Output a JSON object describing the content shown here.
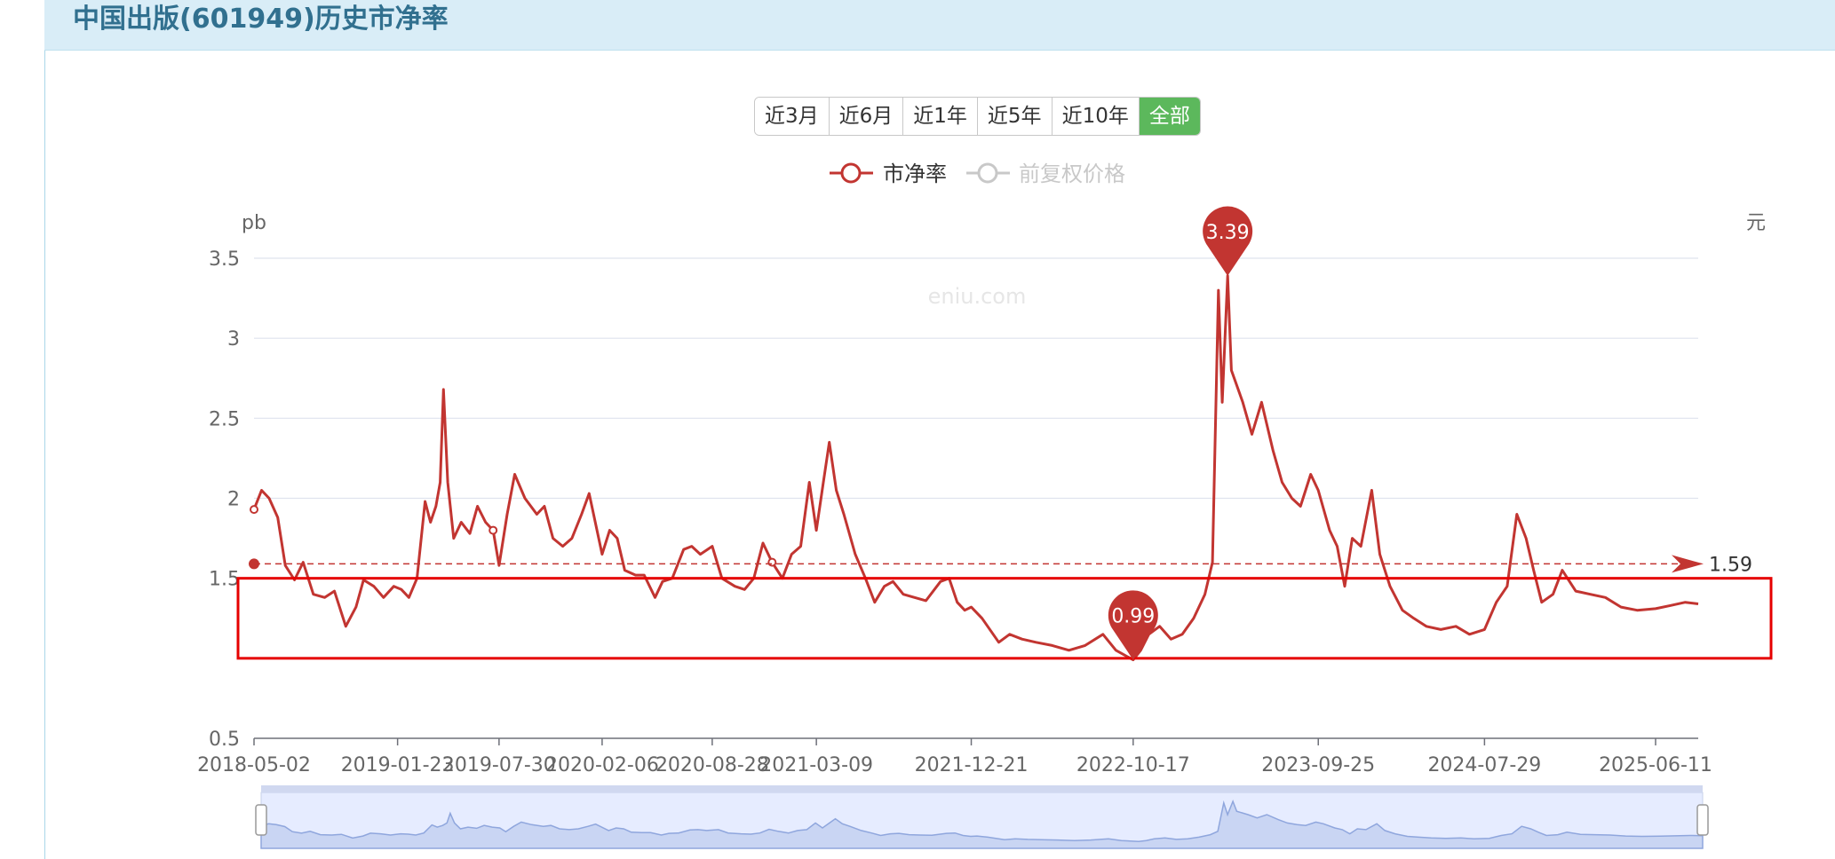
{
  "header": {
    "title": "中国出版(601949)历史市净率"
  },
  "range_buttons": [
    {
      "label": "近3月",
      "active": false
    },
    {
      "label": "近6月",
      "active": false
    },
    {
      "label": "近1年",
      "active": false
    },
    {
      "label": "近5年",
      "active": false
    },
    {
      "label": "近10年",
      "active": false
    },
    {
      "label": "全部",
      "active": true
    }
  ],
  "colors": {
    "accent_green": "#5cb85c",
    "series_red": "#c23531",
    "series_gray": "#c8c8c8",
    "header_bg": "#d9edf7",
    "title_blue": "#31708f",
    "highlight_box": "#e60000"
  },
  "chart_data": {
    "type": "line",
    "title": "",
    "watermark": "eniu.com",
    "left_axis_unit": "pb",
    "right_axis_unit": "元",
    "ylim": [
      0.5,
      3.5
    ],
    "yticks": [
      {
        "label": "3.5",
        "v": 3.5
      },
      {
        "label": "3",
        "v": 3.0
      },
      {
        "label": "2.5",
        "v": 2.5
      },
      {
        "label": "2",
        "v": 2.0
      },
      {
        "label": "1.5",
        "v": 1.5
      },
      {
        "label": "0.5",
        "v": 0.5
      }
    ],
    "xlim": [
      "2018-05-02",
      "2025-08-29"
    ],
    "xticks": [
      "2018-05-02",
      "2019-01-23",
      "2019-07-30",
      "2020-02-06",
      "2020-08-28",
      "2021-03-09",
      "2021-12-21",
      "2022-10-17",
      "2023-09-25",
      "2024-07-29",
      "2025-06-11"
    ],
    "legend": [
      {
        "name": "市净率",
        "active": true
      },
      {
        "name": "前复权价格",
        "active": false
      }
    ],
    "legend_position": "top-center",
    "grid": true,
    "series": [
      {
        "name": "市净率",
        "points": [
          [
            "2018-05-02",
            1.93
          ],
          [
            "2018-05-16",
            2.05
          ],
          [
            "2018-05-30",
            2.0
          ],
          [
            "2018-06-15",
            1.88
          ],
          [
            "2018-06-29",
            1.58
          ],
          [
            "2018-07-16",
            1.49
          ],
          [
            "2018-08-01",
            1.6
          ],
          [
            "2018-08-20",
            1.4
          ],
          [
            "2018-09-10",
            1.38
          ],
          [
            "2018-09-28",
            1.42
          ],
          [
            "2018-10-19",
            1.2
          ],
          [
            "2018-11-07",
            1.32
          ],
          [
            "2018-11-21",
            1.49
          ],
          [
            "2018-12-10",
            1.45
          ],
          [
            "2018-12-28",
            1.38
          ],
          [
            "2019-01-16",
            1.45
          ],
          [
            "2019-01-30",
            1.43
          ],
          [
            "2019-02-13",
            1.38
          ],
          [
            "2019-02-28",
            1.5
          ],
          [
            "2019-03-15",
            1.98
          ],
          [
            "2019-03-25",
            1.85
          ],
          [
            "2019-04-04",
            1.95
          ],
          [
            "2019-04-12",
            2.1
          ],
          [
            "2019-04-18",
            2.68
          ],
          [
            "2019-04-26",
            2.1
          ],
          [
            "2019-05-07",
            1.75
          ],
          [
            "2019-05-21",
            1.85
          ],
          [
            "2019-06-06",
            1.78
          ],
          [
            "2019-06-20",
            1.95
          ],
          [
            "2019-07-05",
            1.85
          ],
          [
            "2019-07-19",
            1.8
          ],
          [
            "2019-07-30",
            1.58
          ],
          [
            "2019-08-14",
            1.9
          ],
          [
            "2019-08-28",
            2.15
          ],
          [
            "2019-09-16",
            2.0
          ],
          [
            "2019-10-08",
            1.9
          ],
          [
            "2019-10-22",
            1.95
          ],
          [
            "2019-11-07",
            1.75
          ],
          [
            "2019-11-25",
            1.7
          ],
          [
            "2019-12-12",
            1.75
          ],
          [
            "2019-12-30",
            1.9
          ],
          [
            "2020-01-13",
            2.03
          ],
          [
            "2020-02-06",
            1.65
          ],
          [
            "2020-02-20",
            1.8
          ],
          [
            "2020-03-05",
            1.75
          ],
          [
            "2020-03-19",
            1.55
          ],
          [
            "2020-04-08",
            1.52
          ],
          [
            "2020-04-24",
            1.52
          ],
          [
            "2020-05-14",
            1.38
          ],
          [
            "2020-05-28",
            1.48
          ],
          [
            "2020-06-15",
            1.5
          ],
          [
            "2020-07-06",
            1.68
          ],
          [
            "2020-07-21",
            1.7
          ],
          [
            "2020-08-06",
            1.65
          ],
          [
            "2020-08-28",
            1.7
          ],
          [
            "2020-09-15",
            1.5
          ],
          [
            "2020-10-09",
            1.45
          ],
          [
            "2020-10-27",
            1.43
          ],
          [
            "2020-11-13",
            1.5
          ],
          [
            "2020-11-30",
            1.72
          ],
          [
            "2020-12-17",
            1.6
          ],
          [
            "2021-01-05",
            1.5
          ],
          [
            "2021-01-22",
            1.65
          ],
          [
            "2021-02-08",
            1.7
          ],
          [
            "2021-02-24",
            2.1
          ],
          [
            "2021-03-09",
            1.8
          ],
          [
            "2021-03-22",
            2.1
          ],
          [
            "2021-04-02",
            2.35
          ],
          [
            "2021-04-15",
            2.05
          ],
          [
            "2021-04-29",
            1.9
          ],
          [
            "2021-05-20",
            1.65
          ],
          [
            "2021-06-08",
            1.5
          ],
          [
            "2021-06-25",
            1.35
          ],
          [
            "2021-07-13",
            1.45
          ],
          [
            "2021-07-29",
            1.48
          ],
          [
            "2021-08-17",
            1.4
          ],
          [
            "2021-09-07",
            1.38
          ],
          [
            "2021-09-28",
            1.36
          ],
          [
            "2021-10-25",
            1.48
          ],
          [
            "2021-11-10",
            1.5
          ],
          [
            "2021-11-25",
            1.35
          ],
          [
            "2021-12-09",
            1.3
          ],
          [
            "2021-12-21",
            1.32
          ],
          [
            "2022-01-10",
            1.25
          ],
          [
            "2022-02-10",
            1.1
          ],
          [
            "2022-03-02",
            1.15
          ],
          [
            "2022-03-25",
            1.12
          ],
          [
            "2022-04-20",
            1.1
          ],
          [
            "2022-05-20",
            1.08
          ],
          [
            "2022-06-20",
            1.05
          ],
          [
            "2022-07-20",
            1.08
          ],
          [
            "2022-08-22",
            1.15
          ],
          [
            "2022-09-15",
            1.05
          ],
          [
            "2022-10-17",
            0.99
          ],
          [
            "2022-10-31",
            1.05
          ],
          [
            "2022-11-15",
            1.15
          ],
          [
            "2022-12-05",
            1.2
          ],
          [
            "2022-12-26",
            1.12
          ],
          [
            "2023-01-16",
            1.15
          ],
          [
            "2023-02-06",
            1.25
          ],
          [
            "2023-02-27",
            1.4
          ],
          [
            "2023-03-13",
            1.6
          ],
          [
            "2023-03-24",
            3.3
          ],
          [
            "2023-03-31",
            2.6
          ],
          [
            "2023-04-10",
            3.39
          ],
          [
            "2023-04-17",
            2.8
          ],
          [
            "2023-05-08",
            2.6
          ],
          [
            "2023-05-25",
            2.4
          ],
          [
            "2023-06-12",
            2.6
          ],
          [
            "2023-07-03",
            2.3
          ],
          [
            "2023-07-20",
            2.1
          ],
          [
            "2023-08-07",
            2.0
          ],
          [
            "2023-08-23",
            1.95
          ],
          [
            "2023-09-11",
            2.15
          ],
          [
            "2023-09-25",
            2.05
          ],
          [
            "2023-10-16",
            1.8
          ],
          [
            "2023-10-30",
            1.7
          ],
          [
            "2023-11-13",
            1.45
          ],
          [
            "2023-11-27",
            1.75
          ],
          [
            "2023-12-13",
            1.7
          ],
          [
            "2024-01-02",
            2.05
          ],
          [
            "2024-01-17",
            1.65
          ],
          [
            "2024-02-05",
            1.45
          ],
          [
            "2024-02-28",
            1.3
          ],
          [
            "2024-03-20",
            1.25
          ],
          [
            "2024-04-12",
            1.2
          ],
          [
            "2024-05-09",
            1.18
          ],
          [
            "2024-06-06",
            1.2
          ],
          [
            "2024-07-01",
            1.15
          ],
          [
            "2024-07-29",
            1.18
          ],
          [
            "2024-08-20",
            1.35
          ],
          [
            "2024-09-09",
            1.45
          ],
          [
            "2024-09-27",
            1.9
          ],
          [
            "2024-10-14",
            1.75
          ],
          [
            "2024-10-28",
            1.55
          ],
          [
            "2024-11-12",
            1.35
          ],
          [
            "2024-12-03",
            1.4
          ],
          [
            "2024-12-20",
            1.55
          ],
          [
            "2025-01-14",
            1.42
          ],
          [
            "2025-02-10",
            1.4
          ],
          [
            "2025-03-10",
            1.38
          ],
          [
            "2025-04-08",
            1.32
          ],
          [
            "2025-05-08",
            1.3
          ],
          [
            "2025-06-11",
            1.31
          ],
          [
            "2025-07-09",
            1.33
          ],
          [
            "2025-08-05",
            1.35
          ],
          [
            "2025-08-29",
            1.34
          ]
        ]
      }
    ],
    "mark_points": [
      {
        "label": "3.39",
        "date": "2023-04-10",
        "value": 3.39
      },
      {
        "label": "0.99",
        "date": "2022-10-17",
        "value": 0.99
      }
    ],
    "mark_line": {
      "label": "1.59",
      "value": 1.59
    },
    "highlight_band": [
      1.0,
      1.5
    ],
    "data_zoom": {
      "start": 0,
      "end": 100
    }
  }
}
